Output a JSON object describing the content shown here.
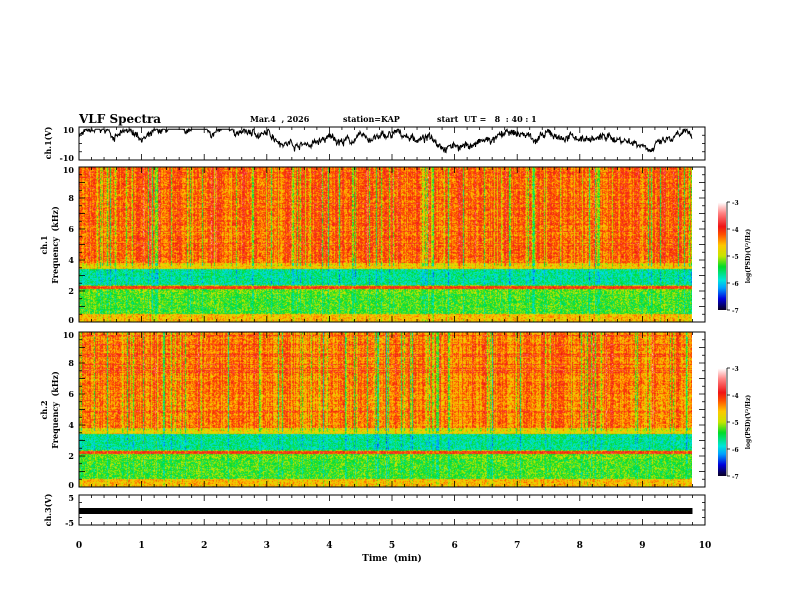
{
  "header": {
    "title": "VLF Spectra",
    "date": "Mar.4  , 2026",
    "station": "station=KAP",
    "start": "start  UT =   8  : 40 : 1"
  },
  "chart_data": [
    {
      "type": "line",
      "name": "ch1-waveform",
      "ylabel": "ch.1(V)",
      "ylim": [
        -10,
        10
      ],
      "yticks": [
        "10",
        "-10"
      ],
      "xlim": [
        0,
        10
      ],
      "data_end_min": 9.8
    },
    {
      "type": "heatmap",
      "name": "ch1-spectrogram",
      "ylabel_top": "ch.1",
      "ylabel": "Frequency  (kHz)",
      "ylim": [
        0,
        10
      ],
      "yticks": [
        "0",
        "2",
        "4",
        "6",
        "8",
        "10"
      ],
      "xlim": [
        0,
        10
      ],
      "data_end_min": 9.8,
      "colorbar": {
        "label": "log(PSD)(V²/Hz)",
        "range": [
          -7,
          -3
        ],
        "ticks": [
          "-3",
          "-4",
          "-5",
          "-6",
          "-7"
        ]
      }
    },
    {
      "type": "heatmap",
      "name": "ch2-spectrogram",
      "ylabel_top": "ch.2",
      "ylabel": "Frequency  (kHz)",
      "ylim": [
        0,
        10
      ],
      "yticks": [
        "0",
        "2",
        "4",
        "6",
        "8",
        "10"
      ],
      "xlim": [
        0,
        10
      ],
      "data_end_min": 9.8,
      "colorbar": {
        "label": "log(PSD)(V²/Hz)",
        "range": [
          -7,
          -3
        ],
        "ticks": [
          "-3",
          "-4",
          "-5",
          "-6",
          "-7"
        ]
      }
    },
    {
      "type": "line",
      "name": "ch3-waveform",
      "ylabel": "ch.3(V)",
      "ylim": [
        -5,
        5
      ],
      "yticks": [
        "5",
        "-5"
      ],
      "xlim": [
        0,
        10
      ],
      "approx_value": 0,
      "data_end_min": 9.8
    }
  ],
  "xaxis": {
    "label": "Time  (min)",
    "ticks": [
      "0",
      "1",
      "2",
      "3",
      "4",
      "5",
      "6",
      "7",
      "8",
      "9",
      "10"
    ]
  }
}
